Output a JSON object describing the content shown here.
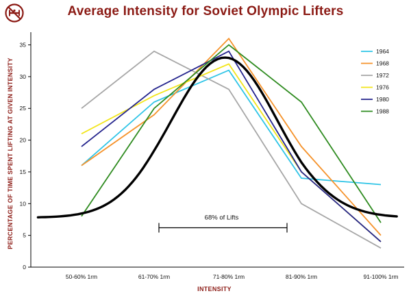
{
  "chart_data": {
    "type": "line",
    "title": "Average Intensity for Soviet Olympic Lifters",
    "xlabel": "INTENSITY",
    "ylabel": "PERCENTAGE OF TIME SPENT LIFTING AT GIVEN INTENSITY",
    "categories": [
      "50-60% 1rm",
      "61-70% 1rm",
      "71-80% 1rm",
      "81-90% 1rm",
      "91-100% 1rm"
    ],
    "ylim": [
      0,
      37
    ],
    "yticks": [
      0,
      5,
      10,
      15,
      20,
      25,
      30,
      35
    ],
    "grid": false,
    "legend_position": "top-right",
    "series": [
      {
        "name": "1964",
        "color": "#2ec4e6",
        "values": [
          16,
          26,
          31,
          14,
          13
        ]
      },
      {
        "name": "1968",
        "color": "#f5922a",
        "values": [
          16,
          24,
          36,
          19,
          5
        ]
      },
      {
        "name": "1972",
        "color": "#a6a6a6",
        "values": [
          25,
          34,
          28,
          10,
          3
        ]
      },
      {
        "name": "1976",
        "color": "#f2e51a",
        "values": [
          21,
          27,
          32,
          15,
          4
        ]
      },
      {
        "name": "1980",
        "color": "#23238c",
        "values": [
          19,
          28,
          34,
          15,
          4
        ]
      },
      {
        "name": "1988",
        "color": "#2e8b1f",
        "values": [
          8,
          25,
          35,
          26,
          7
        ]
      }
    ],
    "bell_curve": {
      "color": "#000000",
      "baseline": 7.8,
      "peak": 33,
      "center_category": 1.95,
      "sigma": 0.72
    },
    "annotation": {
      "label": "68% of Lifts",
      "from_category": 1,
      "to_category": 3,
      "y": 6.2
    }
  },
  "logo": {
    "icon": "no-weightlifting-icon",
    "color": "#8b1a14"
  }
}
